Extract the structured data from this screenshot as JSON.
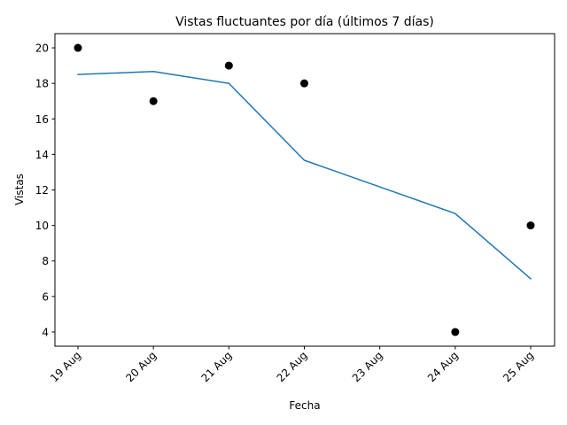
{
  "chart_data": {
    "type": "line",
    "title": "Vistas fluctuantes por día (últimos 7 días)",
    "xlabel": "Fecha",
    "ylabel": "Vistas",
    "x_ticks": [
      "19 Aug",
      "20 Aug",
      "21 Aug",
      "22 Aug",
      "23 Aug",
      "24 Aug",
      "25 Aug"
    ],
    "ylim": [
      3.2,
      20.8
    ],
    "y_ticks": [
      4,
      6,
      8,
      10,
      12,
      14,
      16,
      18,
      20
    ],
    "grid": false,
    "series": [
      {
        "kind": "scatter",
        "color": "#000000",
        "points": [
          {
            "x": "19 Aug",
            "y": 20
          },
          {
            "x": "20 Aug",
            "y": 17
          },
          {
            "x": "21 Aug",
            "y": 19
          },
          {
            "x": "22 Aug",
            "y": 18
          },
          {
            "x": "24 Aug",
            "y": 4
          },
          {
            "x": "25 Aug",
            "y": 10
          }
        ]
      },
      {
        "kind": "line",
        "color": "#1f77b4",
        "points": [
          {
            "x": "19 Aug",
            "y": 18.5
          },
          {
            "x": "20 Aug",
            "y": 18.67
          },
          {
            "x": "21 Aug",
            "y": 18.0
          },
          {
            "x": "22 Aug",
            "y": 13.67
          },
          {
            "x": "24 Aug",
            "y": 10.67
          },
          {
            "x": "25 Aug",
            "y": 7.0
          }
        ]
      }
    ]
  }
}
